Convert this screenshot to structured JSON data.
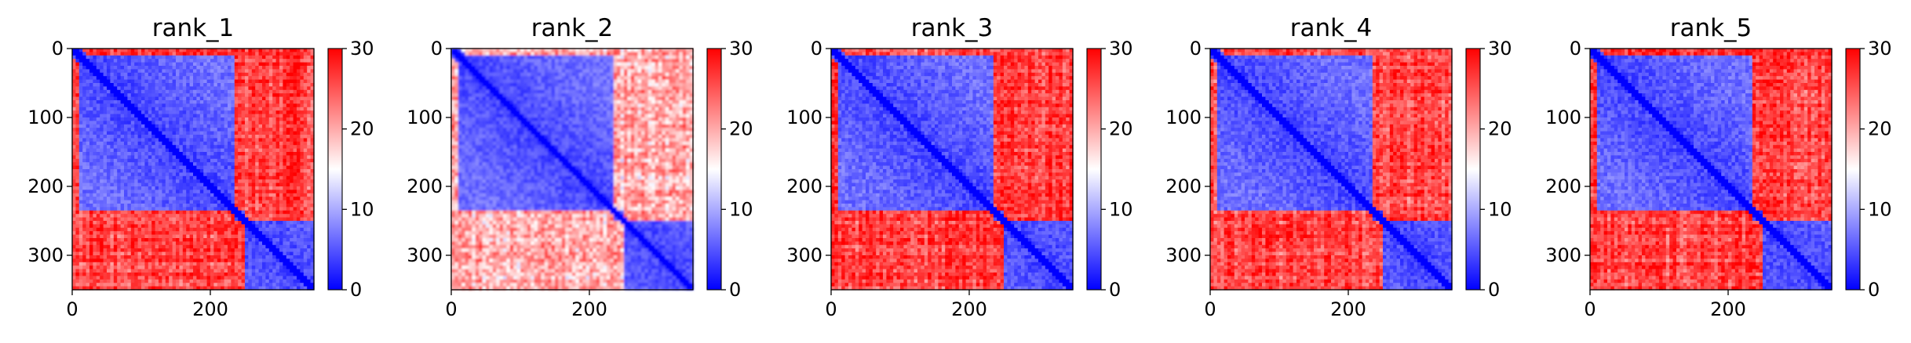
{
  "chart_data": [
    {
      "type": "heatmap",
      "title": "rank_1",
      "xlim": [
        0,
        350
      ],
      "ylim": [
        350,
        0
      ],
      "x_ticks": [
        "0",
        "200"
      ],
      "x_tick_values": [
        0,
        200
      ],
      "y_ticks": [
        "0",
        "100",
        "200",
        "300"
      ],
      "y_tick_values": [
        0,
        100,
        200,
        300
      ],
      "colorbar": {
        "min": 0,
        "max": 30,
        "ticks": [
          "0",
          "10",
          "20",
          "30"
        ],
        "tick_values": [
          0,
          10,
          20,
          30
        ]
      },
      "colormap": [
        "#0000ff",
        "#ffffff",
        "#ff0000"
      ],
      "domains": [
        [
          0,
          10
        ],
        [
          10,
          235
        ],
        [
          235,
          250
        ],
        [
          250,
          350
        ]
      ],
      "inter_domain_level": "high"
    },
    {
      "type": "heatmap",
      "title": "rank_2",
      "xlim": [
        0,
        350
      ],
      "ylim": [
        350,
        0
      ],
      "x_ticks": [
        "0",
        "200"
      ],
      "x_tick_values": [
        0,
        200
      ],
      "y_ticks": [
        "0",
        "100",
        "200",
        "300"
      ],
      "y_tick_values": [
        0,
        100,
        200,
        300
      ],
      "colorbar": {
        "min": 0,
        "max": 30,
        "ticks": [
          "0",
          "10",
          "20",
          "30"
        ],
        "tick_values": [
          0,
          10,
          20,
          30
        ]
      },
      "colormap": [
        "#0000ff",
        "#ffffff",
        "#ff0000"
      ],
      "domains": [
        [
          0,
          10
        ],
        [
          10,
          235
        ],
        [
          235,
          250
        ],
        [
          250,
          350
        ]
      ],
      "inter_domain_level": "medium"
    },
    {
      "type": "heatmap",
      "title": "rank_3",
      "xlim": [
        0,
        350
      ],
      "ylim": [
        350,
        0
      ],
      "x_ticks": [
        "0",
        "200"
      ],
      "x_tick_values": [
        0,
        200
      ],
      "y_ticks": [
        "0",
        "100",
        "200",
        "300"
      ],
      "y_tick_values": [
        0,
        100,
        200,
        300
      ],
      "colorbar": {
        "min": 0,
        "max": 30,
        "ticks": [
          "0",
          "10",
          "20",
          "30"
        ],
        "tick_values": [
          0,
          10,
          20,
          30
        ]
      },
      "colormap": [
        "#0000ff",
        "#ffffff",
        "#ff0000"
      ],
      "domains": [
        [
          0,
          10
        ],
        [
          10,
          235
        ],
        [
          235,
          250
        ],
        [
          250,
          350
        ]
      ],
      "inter_domain_level": "high"
    },
    {
      "type": "heatmap",
      "title": "rank_4",
      "xlim": [
        0,
        350
      ],
      "ylim": [
        350,
        0
      ],
      "x_ticks": [
        "0",
        "200"
      ],
      "x_tick_values": [
        0,
        200
      ],
      "y_ticks": [
        "0",
        "100",
        "200",
        "300"
      ],
      "y_tick_values": [
        0,
        100,
        200,
        300
      ],
      "colorbar": {
        "min": 0,
        "max": 30,
        "ticks": [
          "0",
          "10",
          "20",
          "30"
        ],
        "tick_values": [
          0,
          10,
          20,
          30
        ]
      },
      "colormap": [
        "#0000ff",
        "#ffffff",
        "#ff0000"
      ],
      "domains": [
        [
          0,
          10
        ],
        [
          10,
          235
        ],
        [
          235,
          250
        ],
        [
          250,
          350
        ]
      ],
      "inter_domain_level": "high"
    },
    {
      "type": "heatmap",
      "title": "rank_5",
      "xlim": [
        0,
        350
      ],
      "ylim": [
        350,
        0
      ],
      "x_ticks": [
        "0",
        "200"
      ],
      "x_tick_values": [
        0,
        200
      ],
      "y_ticks": [
        "0",
        "100",
        "200",
        "300"
      ],
      "y_tick_values": [
        0,
        100,
        200,
        300
      ],
      "colorbar": {
        "min": 0,
        "max": 30,
        "ticks": [
          "0",
          "10",
          "20",
          "30"
        ],
        "tick_values": [
          0,
          10,
          20,
          30
        ]
      },
      "colormap": [
        "#0000ff",
        "#ffffff",
        "#ff0000"
      ],
      "domains": [
        [
          0,
          10
        ],
        [
          10,
          235
        ],
        [
          235,
          250
        ],
        [
          250,
          350
        ]
      ],
      "inter_domain_level": "high"
    }
  ]
}
